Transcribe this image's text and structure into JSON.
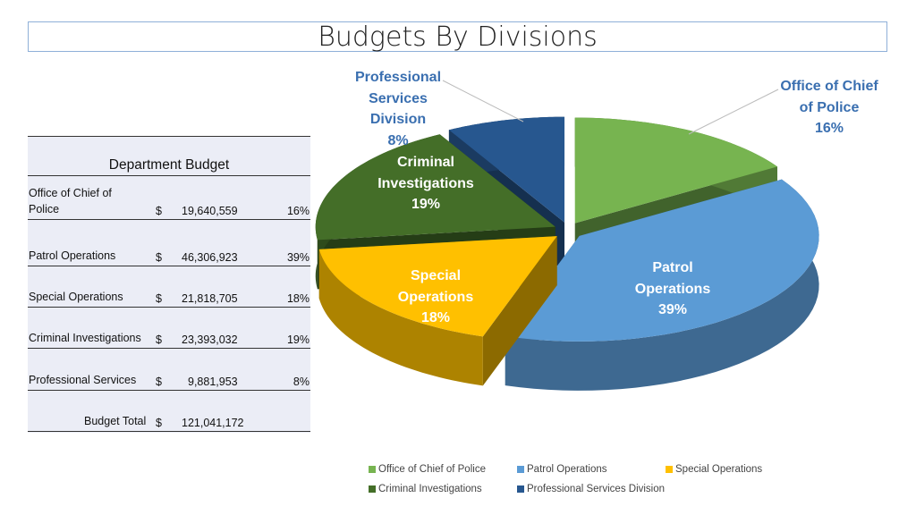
{
  "chart_data": {
    "type": "pie",
    "title": "Budgets By Divisions",
    "categories": [
      "Office of Chief of Police",
      "Patrol Operations",
      "Special Operations",
      "Criminal Investigations",
      "Professional Services Division"
    ],
    "values": [
      16,
      39,
      18,
      19,
      8
    ],
    "data_labels": [
      {
        "name": "Office of Chief of Police",
        "value": "16%"
      },
      {
        "name": "Patrol Operations",
        "value": "39%"
      },
      {
        "name": "Special Operations",
        "value": "18%"
      },
      {
        "name": "Criminal Investigations",
        "value": "19%"
      },
      {
        "name": "Professional Services Division",
        "value": "8%"
      }
    ],
    "colors": [
      "#77b450",
      "#5b9bd5",
      "#ffc000",
      "#446e28",
      "#27578f"
    ],
    "legend_placement": "bottom",
    "style": "3d-exploded"
  },
  "table": {
    "header": "Department Budget",
    "rows": [
      {
        "name": "Office of Chief of Police",
        "currency": "$",
        "amount": "19,640,559",
        "pct": "16%"
      },
      {
        "name": "Patrol Operations",
        "currency": "$",
        "amount": "46,306,923",
        "pct": "39%"
      },
      {
        "name": "Special Operations",
        "currency": "$",
        "amount": "21,818,705",
        "pct": "18%"
      },
      {
        "name": "Criminal Investigations",
        "currency": "$",
        "amount": "23,393,032",
        "pct": "19%"
      },
      {
        "name": "Professional Services",
        "currency": "$",
        "amount": "9,881,953",
        "pct": "8%"
      }
    ],
    "total_label": "Budget Total",
    "total_currency": "$",
    "total_amount": "121,041,172"
  }
}
